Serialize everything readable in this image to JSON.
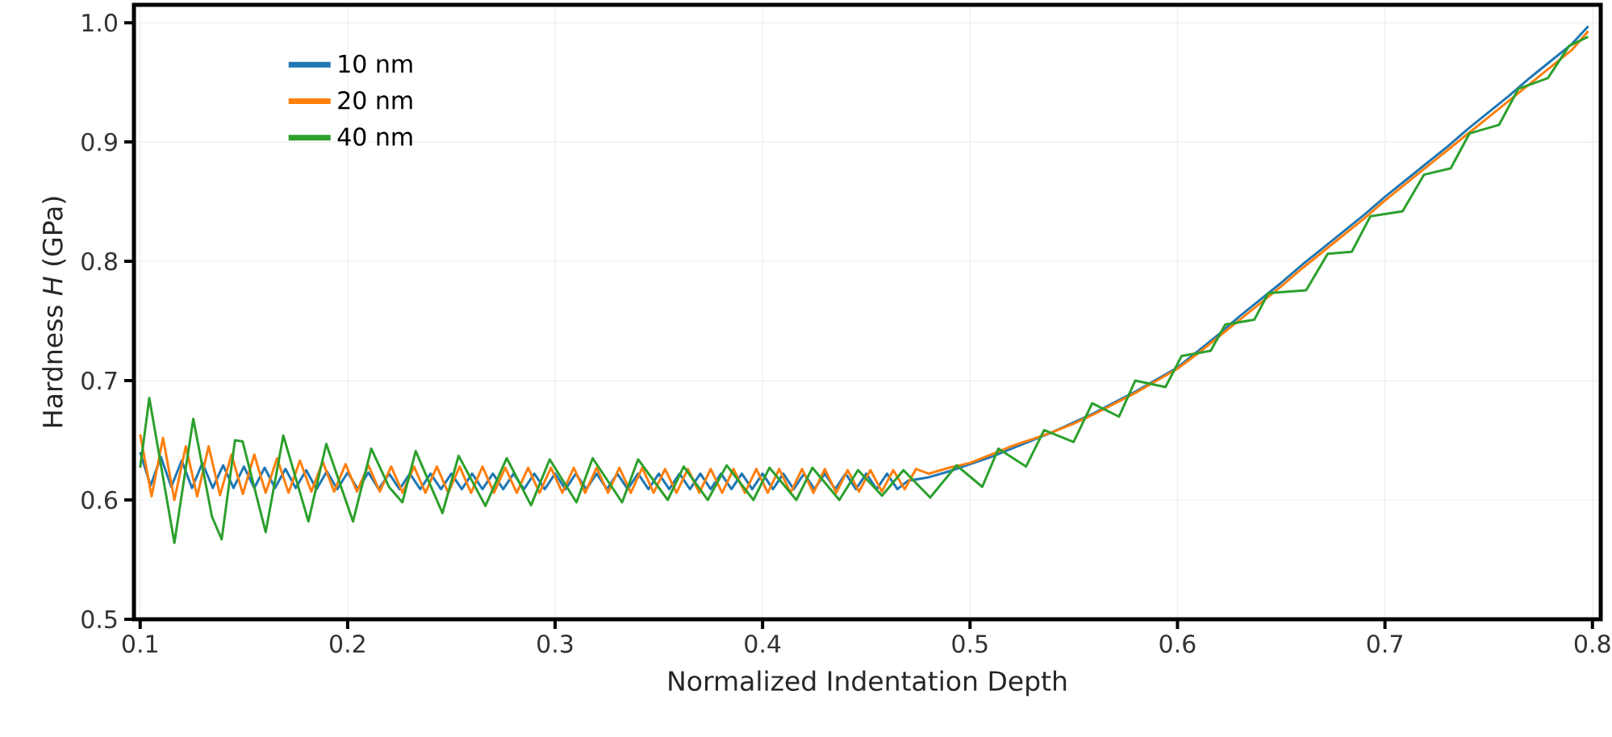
{
  "chart_data": {
    "type": "line",
    "xlabel": "Normalized Indentation Depth",
    "ylabel": "Hardness *H* (GPa)",
    "xlim": [
      0.097,
      0.804
    ],
    "ylim": [
      0.5,
      1.015
    ],
    "xticks": [
      0.1,
      0.2,
      0.3,
      0.4,
      0.5,
      0.6,
      0.7,
      0.8
    ],
    "yticks": [
      0.5,
      0.6,
      0.7,
      0.8,
      0.9,
      {
        "value": 1,
        "label": "1.0"
      }
    ],
    "grid": true,
    "legend": "top left",
    "series": [
      {
        "name": "10 nm",
        "color": "#1f77b4",
        "x": [
          0.1,
          0.105,
          0.11,
          0.115,
          0.12,
          0.125,
          0.13,
          0.135,
          0.14,
          0.145,
          0.15,
          0.155,
          0.16,
          0.165,
          0.17,
          0.175,
          0.18,
          0.185,
          0.19,
          0.195,
          0.2,
          0.205,
          0.21,
          0.215,
          0.22,
          0.225,
          0.23,
          0.235,
          0.24,
          0.245,
          0.25,
          0.255,
          0.26,
          0.265,
          0.27,
          0.275,
          0.28,
          0.285,
          0.29,
          0.295,
          0.3,
          0.305,
          0.31,
          0.315,
          0.32,
          0.325,
          0.33,
          0.335,
          0.34,
          0.345,
          0.35,
          0.355,
          0.36,
          0.365,
          0.37,
          0.375,
          0.38,
          0.385,
          0.39,
          0.395,
          0.4,
          0.405,
          0.41,
          0.415,
          0.42,
          0.425,
          0.43,
          0.435,
          0.44,
          0.445,
          0.45,
          0.455,
          0.46,
          0.465,
          0.47,
          0.48,
          0.49,
          0.5,
          0.51,
          0.52,
          0.53,
          0.54,
          0.55,
          0.56,
          0.57,
          0.58,
          0.59,
          0.6,
          0.61,
          0.62,
          0.63,
          0.64,
          0.65,
          0.66,
          0.67,
          0.68,
          0.69,
          0.7,
          0.71,
          0.72,
          0.73,
          0.74,
          0.75,
          0.76,
          0.77,
          0.78,
          0.79,
          0.798
        ],
        "values": [
          0.64,
          0.612,
          0.636,
          0.611,
          0.633,
          0.61,
          0.631,
          0.61,
          0.629,
          0.61,
          0.628,
          0.61,
          0.627,
          0.61,
          0.626,
          0.61,
          0.625,
          0.609,
          0.624,
          0.609,
          0.623,
          0.609,
          0.623,
          0.609,
          0.622,
          0.609,
          0.622,
          0.609,
          0.622,
          0.609,
          0.622,
          0.609,
          0.622,
          0.609,
          0.622,
          0.609,
          0.622,
          0.609,
          0.622,
          0.609,
          0.622,
          0.609,
          0.622,
          0.609,
          0.622,
          0.609,
          0.622,
          0.609,
          0.622,
          0.609,
          0.622,
          0.609,
          0.622,
          0.609,
          0.622,
          0.609,
          0.622,
          0.609,
          0.622,
          0.609,
          0.622,
          0.609,
          0.622,
          0.609,
          0.622,
          0.609,
          0.622,
          0.609,
          0.622,
          0.609,
          0.622,
          0.609,
          0.622,
          0.609,
          0.616,
          0.619,
          0.624,
          0.63,
          0.636,
          0.643,
          0.65,
          0.657,
          0.665,
          0.673,
          0.682,
          0.691,
          0.701,
          0.711,
          0.725,
          0.739,
          0.754,
          0.768,
          0.782,
          0.797,
          0.811,
          0.825,
          0.839,
          0.854,
          0.868,
          0.882,
          0.896,
          0.911,
          0.925,
          0.939,
          0.954,
          0.968,
          0.982,
          0.997
        ]
      },
      {
        "name": "20 nm",
        "color": "#ff7f0e",
        "x": [
          0.1,
          0.1055,
          0.111,
          0.1165,
          0.122,
          0.1275,
          0.133,
          0.1385,
          0.144,
          0.1495,
          0.155,
          0.1605,
          0.166,
          0.1715,
          0.177,
          0.1825,
          0.188,
          0.1935,
          0.199,
          0.2045,
          0.21,
          0.2155,
          0.221,
          0.2265,
          0.232,
          0.2375,
          0.243,
          0.2485,
          0.254,
          0.2595,
          0.265,
          0.2705,
          0.276,
          0.2815,
          0.287,
          0.2925,
          0.298,
          0.3035,
          0.309,
          0.3145,
          0.32,
          0.3255,
          0.331,
          0.3365,
          0.342,
          0.3475,
          0.353,
          0.3585,
          0.364,
          0.3695,
          0.375,
          0.3805,
          0.386,
          0.3915,
          0.397,
          0.4025,
          0.408,
          0.4135,
          0.419,
          0.4245,
          0.43,
          0.4355,
          0.441,
          0.4465,
          0.452,
          0.4575,
          0.463,
          0.4685,
          0.474,
          0.48,
          0.49,
          0.5,
          0.51,
          0.52,
          0.53,
          0.54,
          0.55,
          0.56,
          0.57,
          0.58,
          0.59,
          0.6,
          0.61,
          0.62,
          0.63,
          0.64,
          0.65,
          0.66,
          0.67,
          0.68,
          0.69,
          0.7,
          0.71,
          0.72,
          0.73,
          0.74,
          0.75,
          0.76,
          0.77,
          0.78,
          0.79,
          0.798
        ],
        "values": [
          0.655,
          0.603,
          0.652,
          0.6,
          0.645,
          0.603,
          0.645,
          0.604,
          0.638,
          0.605,
          0.638,
          0.606,
          0.635,
          0.606,
          0.633,
          0.607,
          0.632,
          0.607,
          0.63,
          0.607,
          0.629,
          0.607,
          0.628,
          0.606,
          0.628,
          0.606,
          0.628,
          0.606,
          0.628,
          0.606,
          0.628,
          0.606,
          0.627,
          0.606,
          0.627,
          0.606,
          0.627,
          0.606,
          0.627,
          0.606,
          0.627,
          0.606,
          0.627,
          0.606,
          0.627,
          0.606,
          0.626,
          0.606,
          0.626,
          0.606,
          0.626,
          0.606,
          0.626,
          0.606,
          0.626,
          0.606,
          0.626,
          0.606,
          0.626,
          0.606,
          0.626,
          0.606,
          0.625,
          0.607,
          0.625,
          0.607,
          0.625,
          0.609,
          0.626,
          0.622,
          0.627,
          0.631,
          0.638,
          0.645,
          0.651,
          0.657,
          0.664,
          0.672,
          0.681,
          0.69,
          0.7,
          0.71,
          0.723,
          0.737,
          0.751,
          0.765,
          0.779,
          0.794,
          0.808,
          0.822,
          0.836,
          0.851,
          0.865,
          0.879,
          0.893,
          0.907,
          0.921,
          0.935,
          0.949,
          0.963,
          0.977,
          0.993
        ]
      },
      {
        "name": "40 nm",
        "color": "#2ca02c",
        "x": [
          0.1,
          0.1044,
          0.1165,
          0.1256,
          0.1346,
          0.1393,
          0.1457,
          0.1494,
          0.1605,
          0.169,
          0.1811,
          0.1897,
          0.2026,
          0.2114,
          0.2199,
          0.2264,
          0.2328,
          0.2457,
          0.2535,
          0.2664,
          0.2767,
          0.2884,
          0.2974,
          0.3103,
          0.3181,
          0.3323,
          0.34,
          0.3543,
          0.362,
          0.3736,
          0.3827,
          0.3956,
          0.4033,
          0.4163,
          0.424,
          0.437,
          0.446,
          0.4576,
          0.4679,
          0.4808,
          0.4935,
          0.5059,
          0.5137,
          0.527,
          0.5357,
          0.5499,
          0.5589,
          0.5718,
          0.5796,
          0.5942,
          0.602,
          0.616,
          0.623,
          0.637,
          0.6438,
          0.662,
          0.6724,
          0.684,
          0.693,
          0.7085,
          0.7188,
          0.7317,
          0.7408,
          0.755,
          0.7643,
          0.7785,
          0.7888,
          0.7979
        ],
        "values": [
          0.627,
          0.6855,
          0.564,
          0.668,
          0.586,
          0.567,
          0.65,
          0.649,
          0.573,
          0.654,
          0.582,
          0.647,
          0.582,
          0.643,
          0.611,
          0.598,
          0.641,
          0.589,
          0.637,
          0.595,
          0.635,
          0.5955,
          0.634,
          0.598,
          0.635,
          0.598,
          0.634,
          0.6,
          0.628,
          0.6,
          0.629,
          0.6,
          0.627,
          0.6,
          0.627,
          0.6,
          0.625,
          0.6036,
          0.625,
          0.602,
          0.629,
          0.611,
          0.643,
          0.628,
          0.6585,
          0.6486,
          0.681,
          0.6698,
          0.7,
          0.6946,
          0.7207,
          0.725,
          0.747,
          0.751,
          0.7734,
          0.7757,
          0.8063,
          0.808,
          0.8378,
          0.842,
          0.8726,
          0.878,
          0.9073,
          0.9144,
          0.9446,
          0.9536,
          0.9806,
          0.9882
        ]
      }
    ]
  }
}
